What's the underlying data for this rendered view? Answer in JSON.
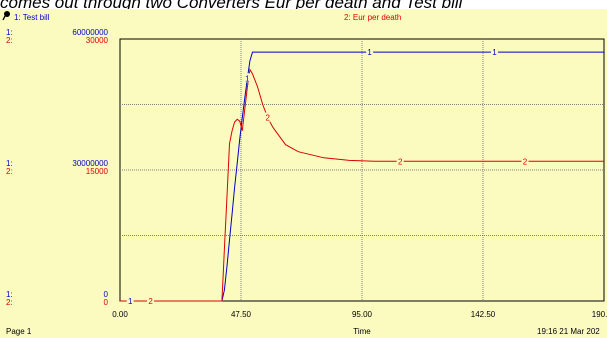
{
  "caption": "comes out through two Converters Eur per death and Test bill",
  "footer": {
    "page": "Page 1",
    "timestamp": "19:16  21 Mar 202"
  },
  "colors": {
    "background": "#fbfbc0",
    "series_1": "#0000cc",
    "series_2": "#dd0000",
    "grid": "#808080"
  },
  "chart_data": {
    "type": "line",
    "xlabel": "Time",
    "xlim": [
      0,
      190
    ],
    "xticks": [
      "0.00",
      "47.50",
      "95.00",
      "142.50",
      "190.00"
    ],
    "xtick_values": [
      0,
      47.5,
      95,
      142.5,
      190
    ],
    "grid": true,
    "series": [
      {
        "id": "1",
        "name": "1: Test bill",
        "axis_label": "1:",
        "ylim": [
          0,
          60000000
        ],
        "ytick_labels": [
          "0",
          "30000000",
          "60000000"
        ],
        "marker_label": "1",
        "x": [
          0,
          40,
          41,
          42,
          43,
          44,
          45,
          46,
          47,
          48,
          49,
          50,
          51,
          52,
          60,
          100,
          140,
          190
        ],
        "values": [
          0,
          0,
          2500000,
          8000000,
          14000000,
          20000000,
          26000000,
          31500000,
          37000000,
          42000000,
          46500000,
          51000000,
          55000000,
          57000000,
          57000000,
          57000000,
          57000000,
          57000000
        ],
        "markers_at": [
          4,
          50,
          98,
          147
        ]
      },
      {
        "id": "2",
        "name": "2: Eur per death",
        "axis_label": "2:",
        "ylim": [
          0,
          30000
        ],
        "ytick_labels": [
          "0",
          "15000",
          "30000"
        ],
        "marker_label": "2",
        "x": [
          0,
          40,
          40.5,
          41,
          42,
          43,
          44,
          45,
          46,
          47,
          48,
          49,
          50,
          51,
          52,
          54,
          56,
          58,
          60,
          65,
          70,
          80,
          90,
          100,
          140,
          190
        ],
        "values": [
          0,
          0,
          3000,
          6000,
          12000,
          18000,
          19500,
          20500,
          20800,
          20600,
          19500,
          22000,
          24500,
          26500,
          26000,
          24500,
          22500,
          21000,
          19900,
          17900,
          17100,
          16400,
          16100,
          16000,
          16000,
          16000
        ],
        "markers_at": [
          12,
          58,
          110,
          159
        ]
      }
    ]
  }
}
